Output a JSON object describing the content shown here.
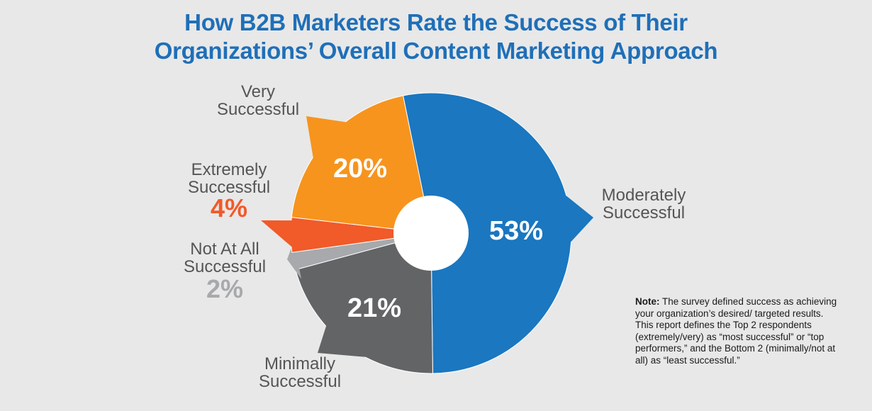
{
  "title": {
    "line1": "How B2B Marketers Rate the Success of Their",
    "line2": "Organizations’ Overall Content Marketing Approach"
  },
  "note": {
    "label": "Note:",
    "text": " The survey defined success as achieving your organization’s desired/ targeted results. This report defines the Top 2 respondents (extremely/very) as “most successful” or “top performers,” and the Bottom 2 (minimally/not at all) as “least successful.”"
  },
  "chart_data": {
    "type": "pie",
    "title": "How B2B Marketers Rate the Success of Their Organizations’ Overall Content Marketing Approach",
    "unit": "%",
    "slices": [
      {
        "label": "Moderately Successful",
        "label_lines": [
          "Moderately",
          "Successful"
        ],
        "value": 53,
        "display": "53%",
        "color": "#1a77c0"
      },
      {
        "label": "Minimally Successful",
        "label_lines": [
          "Minimally",
          "Successful"
        ],
        "value": 21,
        "display": "21%",
        "color": "#636466"
      },
      {
        "label": "Not At All Successful",
        "label_lines": [
          "Not At All",
          "Successful"
        ],
        "value": 2,
        "display": "2%",
        "color": "#a7a9ac"
      },
      {
        "label": "Extremely Successful",
        "label_lines": [
          "Extremely",
          "Successful"
        ],
        "value": 4,
        "display": "4%",
        "color": "#f15a29"
      },
      {
        "label": "Very Successful",
        "label_lines": [
          "Very",
          "Successful"
        ],
        "value": 20,
        "display": "20%",
        "color": "#f7941d"
      }
    ],
    "label_color": "#555555"
  }
}
